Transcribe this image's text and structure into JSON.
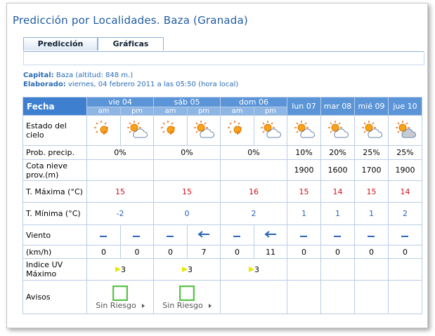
{
  "header": {
    "title": "Predicción por Localidades. Baza (Granada)"
  },
  "tabs": [
    "Predicción",
    "Gráficas"
  ],
  "info": {
    "capital_label": "Capital:",
    "capital": "Baza (altitud: 848 m.)",
    "elaborado_label": "Elaborado:",
    "elaborado": "viernes, 04 febrero 2011 a las 05:50 (hora local)"
  },
  "table": {
    "corner": "Fecha",
    "days": [
      "vie 04",
      "sáb 05",
      "dom 06",
      "lun 07",
      "mar 08",
      "mié 09",
      "jue 10"
    ],
    "halves": [
      "am",
      "pm",
      "am",
      "pm",
      "am",
      "pm"
    ],
    "rows": [
      {
        "label": "Estado del cielo"
      },
      {
        "label": "Prob. precip.",
        "cells": [
          "0%",
          "0%",
          "0%",
          "10%",
          "20%",
          "25%",
          "25%"
        ]
      },
      {
        "label": "Cota nieve prov.(m)",
        "cells": [
          null,
          null,
          null,
          1900,
          1600,
          1700,
          1900
        ]
      },
      {
        "label": "T. Máxima (°C)",
        "cells": [
          15,
          15,
          16,
          15,
          14,
          15,
          14
        ]
      },
      {
        "label": "T. Mínima (°C)",
        "cells": [
          -2,
          0,
          2,
          1,
          1,
          1,
          2
        ]
      },
      {
        "label": "Viento"
      },
      {
        "label": "(km/h)",
        "cells": [
          0,
          0,
          0,
          7,
          0,
          11,
          0,
          0,
          0,
          0
        ]
      },
      {
        "label": "Indice UV Máximo",
        "cells": [
          3,
          3,
          3,
          null,
          null,
          null,
          null
        ]
      },
      {
        "label": "Avisos",
        "cells": [
          "Sin Riesgo",
          "Sin Riesgo",
          null,
          null,
          null,
          null,
          null
        ]
      }
    ]
  }
}
